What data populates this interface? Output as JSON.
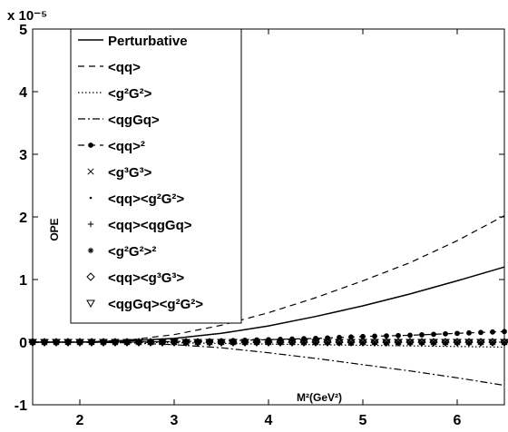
{
  "chart_data": {
    "type": "line",
    "title": "",
    "xlabel": "M²(GeV²)",
    "ylabel": "OPE",
    "y_scale_label": "x 10⁻⁵",
    "xlim": [
      1.5,
      6.5
    ],
    "ylim": [
      -1,
      5
    ],
    "xticks": [
      2,
      3,
      4,
      5,
      6
    ],
    "yticks": [
      -1,
      0,
      1,
      2,
      3,
      4,
      5
    ],
    "grid": false,
    "legend_position": "top-left",
    "series": [
      {
        "name": "Perturbative",
        "style": "solid",
        "marker": "none",
        "x": [
          1.5,
          2.0,
          2.5,
          3.0,
          3.5,
          4.0,
          4.5,
          5.0,
          5.5,
          6.0,
          6.5
        ],
        "y": [
          0.0,
          0.0,
          0.02,
          0.06,
          0.14,
          0.26,
          0.41,
          0.58,
          0.77,
          0.98,
          1.2
        ]
      },
      {
        "name": "<qq>",
        "style": "dashed",
        "marker": "none",
        "x": [
          1.5,
          2.0,
          2.5,
          3.0,
          3.5,
          4.0,
          4.5,
          5.0,
          5.5,
          6.0,
          6.5
        ],
        "y": [
          0.0,
          0.0,
          0.03,
          0.12,
          0.27,
          0.47,
          0.71,
          0.98,
          1.27,
          1.62,
          2.02
        ]
      },
      {
        "name": "<g²G²>",
        "style": "dotted",
        "marker": "none",
        "x": [
          1.5,
          2.0,
          2.5,
          3.0,
          3.5,
          4.0,
          4.5,
          5.0,
          5.5,
          6.0,
          6.5
        ],
        "y": [
          0.0,
          0.0,
          0.0,
          -0.01,
          -0.02,
          -0.03,
          -0.04,
          -0.05,
          -0.06,
          -0.07,
          -0.08
        ]
      },
      {
        "name": "<qgGq>",
        "style": "dashdot",
        "marker": "none",
        "x": [
          1.5,
          2.0,
          2.5,
          3.0,
          3.5,
          4.0,
          4.5,
          5.0,
          5.5,
          6.0,
          6.5
        ],
        "y": [
          0.0,
          0.0,
          -0.01,
          -0.04,
          -0.09,
          -0.17,
          -0.26,
          -0.36,
          -0.46,
          -0.57,
          -0.69
        ]
      },
      {
        "name": "<qq>²",
        "style": "dashed",
        "marker": "dot",
        "x": [
          1.5,
          2.0,
          2.5,
          3.0,
          3.5,
          4.0,
          4.5,
          5.0,
          5.5,
          6.0,
          6.5
        ],
        "y": [
          0.0,
          0.0,
          0.0,
          0.01,
          0.02,
          0.04,
          0.06,
          0.09,
          0.11,
          0.14,
          0.17
        ]
      },
      {
        "name": "<g³G³>",
        "style": "none",
        "marker": "x",
        "x": [
          1.5,
          2.0,
          2.5,
          3.0,
          3.5,
          4.0,
          4.5,
          5.0,
          5.5,
          6.0,
          6.5
        ],
        "y": [
          0.0,
          0.0,
          0.0,
          0.0,
          0.0,
          0.0,
          0.0,
          0.0,
          0.0,
          0.0,
          0.0
        ]
      },
      {
        "name": "<qq><g²G²>",
        "style": "none",
        "marker": "point",
        "x": [
          1.5,
          2.0,
          2.5,
          3.0,
          3.5,
          4.0,
          4.5,
          5.0,
          5.5,
          6.0,
          6.5
        ],
        "y": [
          0.0,
          0.0,
          0.0,
          0.0,
          -0.01,
          -0.01,
          -0.02,
          -0.02,
          -0.03,
          -0.03,
          -0.04
        ]
      },
      {
        "name": "<qq><qgGq>",
        "style": "none",
        "marker": "plus",
        "x": [
          1.5,
          2.0,
          2.5,
          3.0,
          3.5,
          4.0,
          4.5,
          5.0,
          5.5,
          6.0,
          6.5
        ],
        "y": [
          0.0,
          0.0,
          0.0,
          0.0,
          0.0,
          0.0,
          0.0,
          0.0,
          0.0,
          0.0,
          0.0
        ]
      },
      {
        "name": "<g²G²>²",
        "style": "none",
        "marker": "star",
        "x": [
          1.5,
          2.0,
          2.5,
          3.0,
          3.5,
          4.0,
          4.5,
          5.0,
          5.5,
          6.0,
          6.5
        ],
        "y": [
          0.0,
          0.0,
          0.0,
          0.0,
          0.0,
          0.0,
          0.0,
          0.0,
          0.0,
          0.0,
          0.0
        ]
      },
      {
        "name": "<qq><g³G³>",
        "style": "none",
        "marker": "diamond",
        "x": [
          1.5,
          2.0,
          2.5,
          3.0,
          3.5,
          4.0,
          4.5,
          5.0,
          5.5,
          6.0,
          6.5
        ],
        "y": [
          0.0,
          0.0,
          0.0,
          0.0,
          0.0,
          0.0,
          0.0,
          0.0,
          0.0,
          0.0,
          0.0
        ]
      },
      {
        "name": "<qgGq><g²G²>",
        "style": "none",
        "marker": "triangle-down",
        "x": [
          1.5,
          2.0,
          2.5,
          3.0,
          3.5,
          4.0,
          4.5,
          5.0,
          5.5,
          6.0,
          6.5
        ],
        "y": [
          0.0,
          0.0,
          0.0,
          0.0,
          0.0,
          0.0,
          0.0,
          0.0,
          0.0,
          0.0,
          0.0
        ]
      }
    ]
  }
}
